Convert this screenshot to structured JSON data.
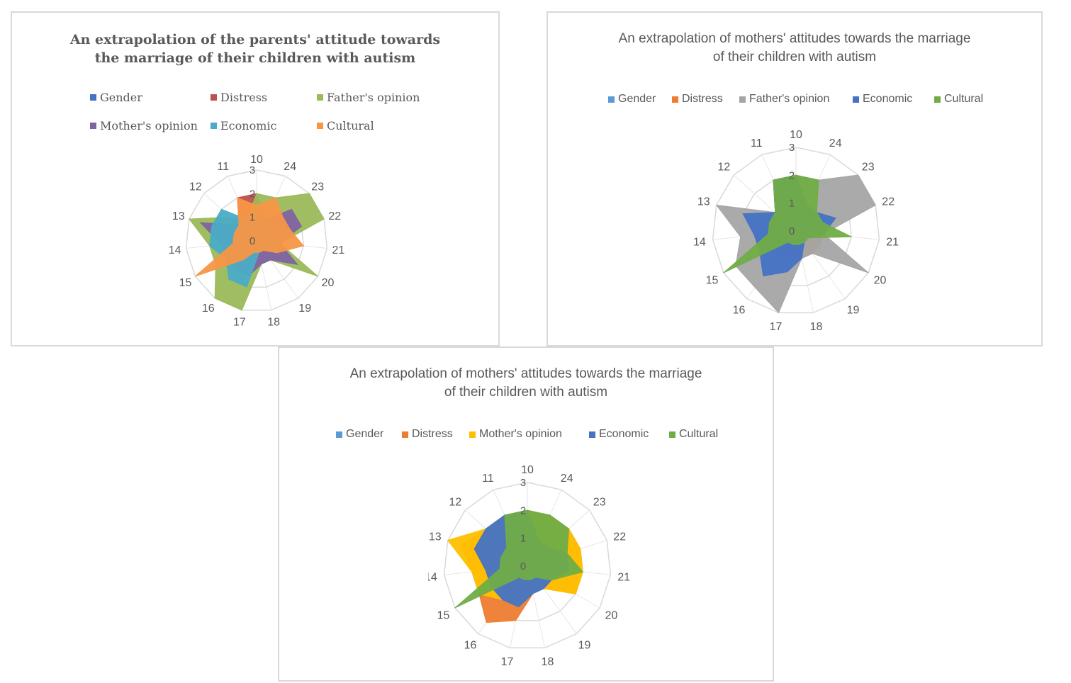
{
  "chart_data": [
    {
      "type": "radar",
      "title_lines": [
        "An extrapolation of the parents' attitude towards",
        "the marriage of their children with autism"
      ],
      "categories": [
        "10",
        "24",
        "23",
        "22",
        "21",
        "20",
        "19",
        "18",
        "17",
        "16",
        "15",
        "14",
        "13",
        "12",
        "11"
      ],
      "radial_ticks": [
        "0",
        "1",
        "2",
        "3"
      ],
      "rlim": [
        0,
        3
      ],
      "legend": "top",
      "series": [
        {
          "name": "Gender",
          "color": "#4472c4",
          "values": [
            2,
            1,
            0.5,
            0.5,
            0.5,
            0.5,
            0.5,
            0.5,
            0.5,
            0.5,
            0.5,
            0.5,
            1,
            1,
            1
          ]
        },
        {
          "name": "Distress",
          "color": "#c0504d",
          "values": [
            2,
            1,
            1,
            0.5,
            0.5,
            0.5,
            0.5,
            0.5,
            0.5,
            0.5,
            0.5,
            0.5,
            0.5,
            1,
            2
          ]
        },
        {
          "name": "Father's opinion",
          "color": "#9bbb59",
          "values": [
            2,
            2,
            3,
            3,
            1,
            3,
            1,
            1,
            3,
            3,
            2,
            2,
            3,
            1.5,
            1
          ]
        },
        {
          "name": "Mother's opinion",
          "color": "#8064a2",
          "values": [
            1,
            1,
            2,
            2,
            1,
            2,
            1,
            1,
            1.5,
            1.5,
            1.5,
            1.5,
            2.5,
            1,
            1
          ]
        },
        {
          "name": "Economic",
          "color": "#4bacc6",
          "values": [
            1,
            1,
            1,
            1.5,
            1,
            1,
            0.5,
            0.5,
            2,
            2,
            1.5,
            2,
            2,
            2,
            1
          ]
        },
        {
          "name": "Cultural",
          "color": "#f79646",
          "values": [
            1.5,
            2,
            1.5,
            1.5,
            2,
            1,
            0.5,
            0.5,
            0.5,
            1,
            3,
            1,
            1,
            1,
            2
          ]
        }
      ]
    },
    {
      "type": "radar",
      "title_lines": [
        "An extrapolation of mothers' attitudes towards the marriage",
        "of their children with autism"
      ],
      "categories": [
        "10",
        "24",
        "23",
        "22",
        "21",
        "20",
        "19",
        "18",
        "17",
        "16",
        "15",
        "14",
        "13",
        "12",
        "11"
      ],
      "radial_ticks": [
        "0",
        "1",
        "2",
        "3"
      ],
      "rlim": [
        0,
        3
      ],
      "legend": "top",
      "series": [
        {
          "name": "Gender",
          "color": "#5b9bd5",
          "values": [
            2,
            1,
            1,
            1,
            1,
            1,
            1,
            1,
            1,
            1,
            1,
            1,
            1,
            1,
            2
          ]
        },
        {
          "name": "Distress",
          "color": "#ed7d31",
          "values": [
            2,
            1,
            1,
            1,
            1,
            1,
            1,
            1,
            1,
            1,
            1,
            1,
            1,
            1,
            2
          ]
        },
        {
          "name": "Father's opinion",
          "color": "#a5a5a5",
          "values": [
            2,
            2,
            3,
            3,
            1,
            3,
            1,
            1,
            3,
            2.5,
            2.5,
            2,
            3,
            1,
            2
          ]
        },
        {
          "name": "Economic",
          "color": "#4472c4",
          "values": [
            2,
            1,
            1,
            1.5,
            1,
            0.5,
            0.5,
            1,
            1.5,
            2,
            1.5,
            1.5,
            2,
            1,
            2
          ]
        },
        {
          "name": "Cultural",
          "color": "#70ad47",
          "values": [
            2,
            2,
            1,
            1,
            2,
            0.5,
            0.5,
            0.5,
            0.5,
            0.5,
            3,
            1,
            1,
            1,
            2
          ]
        }
      ]
    },
    {
      "type": "radar",
      "title_lines": [
        "An extrapolation of mothers' attitudes towards the marriage",
        "of their children with autism"
      ],
      "categories": [
        "10",
        "24",
        "23",
        "22",
        "21",
        "20",
        "19",
        "18",
        "17",
        "16",
        "15",
        "14",
        "13",
        "12",
        "11"
      ],
      "radial_ticks": [
        "0",
        "1",
        "2",
        "3"
      ],
      "rlim": [
        0,
        3
      ],
      "legend": "top",
      "series": [
        {
          "name": "Gender",
          "color": "#5b9bd5",
          "values": [
            2,
            1,
            1,
            1,
            1,
            1,
            1,
            1,
            1,
            1,
            1,
            1,
            1,
            1,
            2
          ]
        },
        {
          "name": "Distress",
          "color": "#ed7d31",
          "values": [
            2,
            2,
            2,
            2,
            2,
            2,
            1,
            1,
            2,
            2.5,
            2,
            2,
            2.5,
            2,
            2
          ]
        },
        {
          "name": "Mother's opinion",
          "color": "#ffc000",
          "values": [
            2,
            2,
            2,
            2,
            2,
            2,
            1,
            1,
            1.5,
            1.5,
            2,
            2,
            3,
            2,
            2
          ]
        },
        {
          "name": "Economic",
          "color": "#4472c4",
          "values": [
            2,
            1,
            1,
            1.5,
            1.5,
            1,
            1,
            1,
            1.5,
            1.5,
            1.5,
            1.5,
            2,
            2,
            2
          ]
        },
        {
          "name": "Cultural",
          "color": "#70ad47",
          "values": [
            2,
            2,
            2,
            1.5,
            2,
            1,
            0.5,
            0.5,
            0.5,
            0.5,
            3,
            1,
            1,
            1,
            2
          ]
        }
      ]
    }
  ]
}
